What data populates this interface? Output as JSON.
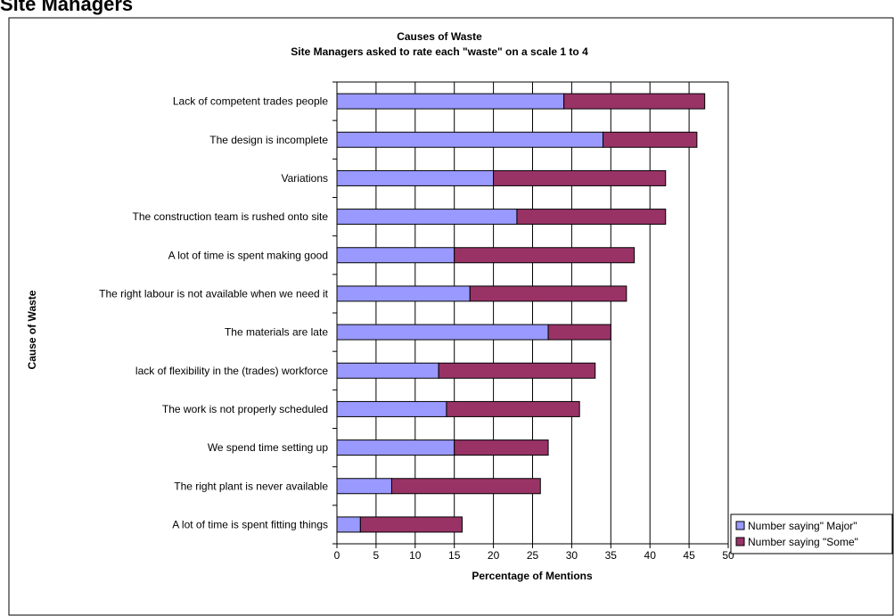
{
  "page": {
    "heading": "Site Managers"
  },
  "chart_data": {
    "type": "bar",
    "orientation": "horizontal",
    "stacked": true,
    "title": "Causes of Waste",
    "subtitle": "Site Managers asked to rate each \"waste\" on a scale 1 to 4",
    "xlabel": "Percentage of Mentions",
    "ylabel": "Cause of Waste",
    "xlim": [
      0,
      50
    ],
    "x_ticks": [
      0,
      5,
      10,
      15,
      20,
      25,
      30,
      35,
      40,
      45,
      50
    ],
    "grid": true,
    "legend_position": "right",
    "categories": [
      "Lack of competent trades people",
      "The design is incomplete",
      "Variations",
      "The construction team is rushed onto site",
      "A lot of time is spent making good",
      "The right labour is not available when we need it",
      "The materials are late",
      "lack of flexibility in the (trades) workforce",
      "The work is not properly scheduled",
      "We spend time setting up",
      "The right plant is never available",
      "A lot of time is spent fitting things"
    ],
    "series": [
      {
        "name": "Number saying\" Major\"",
        "color": "#9999ff",
        "values": [
          29,
          34,
          20,
          23,
          15,
          17,
          27,
          13,
          14,
          15,
          7,
          3
        ]
      },
      {
        "name": "Number saying \"Some\"",
        "color": "#993366",
        "values": [
          18,
          12,
          22,
          19,
          23,
          20,
          8,
          20,
          17,
          12,
          19,
          13
        ]
      }
    ]
  }
}
